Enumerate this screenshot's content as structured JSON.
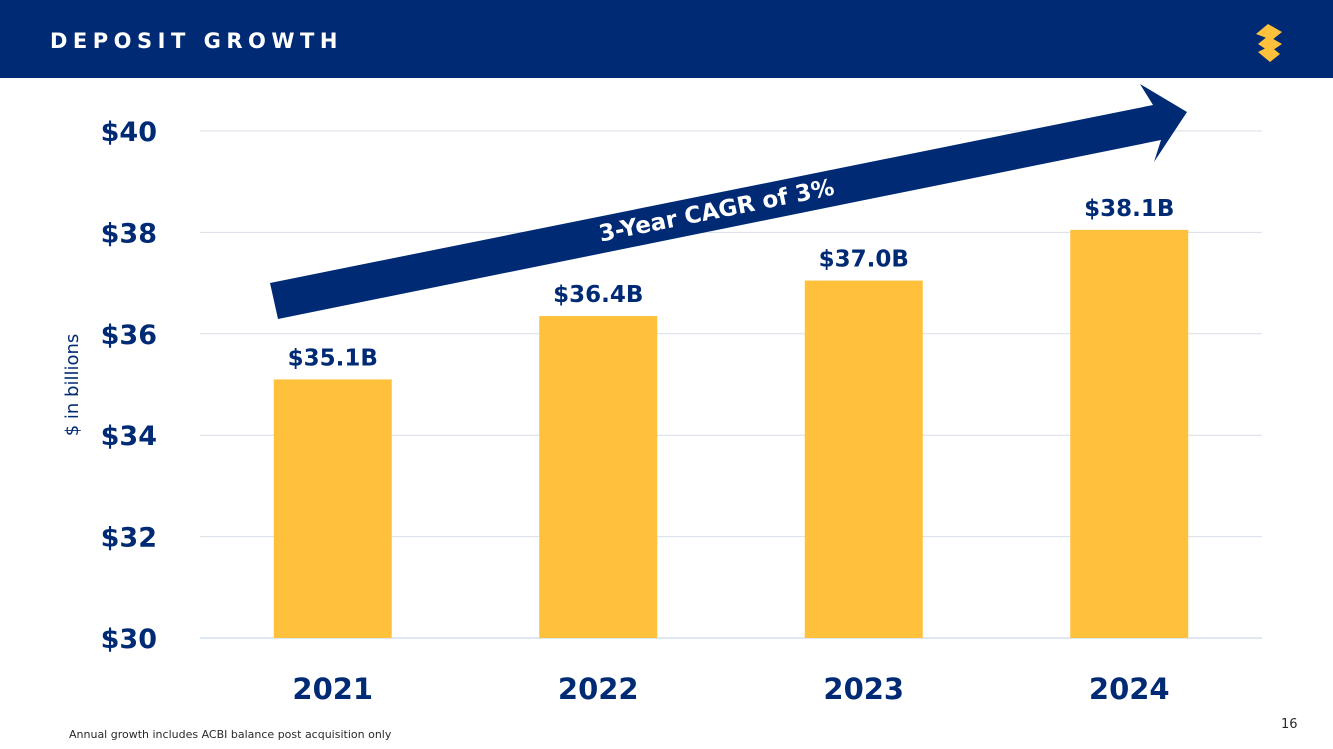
{
  "header": {
    "title": "DEPOSIT GROWTH",
    "logo_icon": "brand-s-logo-icon"
  },
  "colors": {
    "navy": "#002B74",
    "gold": "#FFC13B",
    "grid": "#D9DEE8",
    "baseline": "#BFD0E6"
  },
  "chart_data": {
    "type": "bar",
    "title": "",
    "categories": [
      "2021",
      "2022",
      "2023",
      "2024"
    ],
    "values": [
      35.1,
      36.35,
      37.05,
      38.05
    ],
    "data_labels": [
      "$35.1B",
      "$36.4B",
      "$37.0B",
      "$38.1B"
    ],
    "ylabel": "$ in billions",
    "xlabel": "",
    "ylim": [
      30,
      40
    ],
    "yticks": [
      30,
      32,
      34,
      36,
      38,
      40
    ],
    "ytick_labels": [
      "$30",
      "$32",
      "$34",
      "$36",
      "$38",
      "$40"
    ],
    "grid": true,
    "annotation": "3-Year CAGR of 3%"
  },
  "footnote": "Annual growth includes ACBI balance post acquisition only",
  "page_number": "16"
}
